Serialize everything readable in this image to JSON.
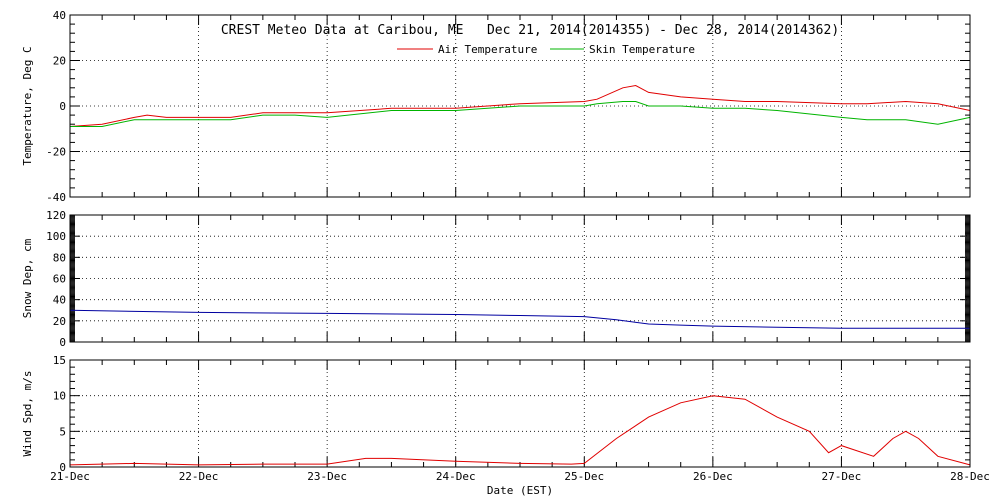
{
  "title": "CREST Meteo Data at Caribou, ME   Dec 21, 2014(2014355) - Dec 28, 2014(2014362)",
  "xlabel": "Date (EST)",
  "x_ticks": [
    "21-Dec",
    "22-Dec",
    "23-Dec",
    "24-Dec",
    "25-Dec",
    "26-Dec",
    "27-Dec",
    "28-Dec"
  ],
  "colors": {
    "air": "#e00000",
    "skin": "#00b400",
    "snow": "#0000a0",
    "wind": "#e00000"
  },
  "chart_data": [
    {
      "type": "line",
      "ylabel": "Temperature, Deg C",
      "ylim": [
        -40,
        40
      ],
      "y_ticks": [
        "-40",
        "-20",
        "0",
        "20",
        "40"
      ],
      "xlim": [
        0,
        7
      ],
      "grid": true,
      "legend": "top-center",
      "x": [
        0,
        0.25,
        0.5,
        0.6,
        0.75,
        1.0,
        1.25,
        1.5,
        1.75,
        2.0,
        2.5,
        3.0,
        3.5,
        4.0,
        4.1,
        4.3,
        4.4,
        4.5,
        4.75,
        5.0,
        5.25,
        5.5,
        6.0,
        6.2,
        6.5,
        6.75,
        7.0
      ],
      "series": [
        {
          "name": "Air Temperature",
          "values": [
            -9,
            -8,
            -5,
            -4,
            -5,
            -5,
            -5,
            -3,
            -3,
            -3,
            -1,
            -1,
            1,
            2,
            3,
            8,
            9,
            6,
            4,
            3,
            2,
            2,
            1,
            1,
            2,
            1,
            -2
          ]
        },
        {
          "name": "Skin Temperature",
          "values": [
            -9,
            -9,
            -6,
            -6,
            -6,
            -6,
            -6,
            -4,
            -4,
            -5,
            -2,
            -2,
            0,
            0,
            1,
            2,
            2,
            0,
            0,
            -1,
            -1,
            -2,
            -5,
            -6,
            -6,
            -8,
            -5
          ]
        }
      ]
    },
    {
      "type": "line",
      "ylabel": "Snow Dep, cm",
      "ylim": [
        0,
        120
      ],
      "y_ticks": [
        "0",
        "20",
        "40",
        "60",
        "80",
        "100",
        "120"
      ],
      "xlim": [
        0,
        7
      ],
      "grid": true,
      "x": [
        0,
        1,
        2,
        3,
        3.5,
        4.0,
        4.25,
        4.5,
        4.75,
        5.0,
        5.5,
        6.0,
        6.5,
        7.0
      ],
      "series": [
        {
          "name": "Snow Depth",
          "values": [
            30,
            28,
            27,
            26,
            25,
            24,
            21,
            17,
            16,
            15,
            14,
            13,
            13,
            13
          ]
        }
      ]
    },
    {
      "type": "line",
      "ylabel": "Wind Spd, m/s",
      "ylim": [
        0,
        15
      ],
      "y_ticks": [
        "0",
        "5",
        "10",
        "15"
      ],
      "xlim": [
        0,
        7
      ],
      "grid": true,
      "x": [
        0,
        0.5,
        1,
        1.5,
        2.0,
        2.3,
        2.5,
        3.0,
        3.5,
        3.9,
        4.0,
        4.25,
        4.5,
        4.75,
        5.0,
        5.25,
        5.5,
        5.75,
        5.9,
        6.0,
        6.25,
        6.4,
        6.5,
        6.6,
        6.75,
        7.0
      ],
      "series": [
        {
          "name": "Wind Speed",
          "values": [
            0.3,
            0.5,
            0.3,
            0.4,
            0.4,
            1.2,
            1.2,
            0.8,
            0.5,
            0.4,
            0.5,
            4,
            7,
            9,
            10,
            9.5,
            7,
            5,
            2,
            3,
            1.5,
            4,
            5,
            4,
            1.5,
            0.3
          ]
        }
      ]
    }
  ]
}
